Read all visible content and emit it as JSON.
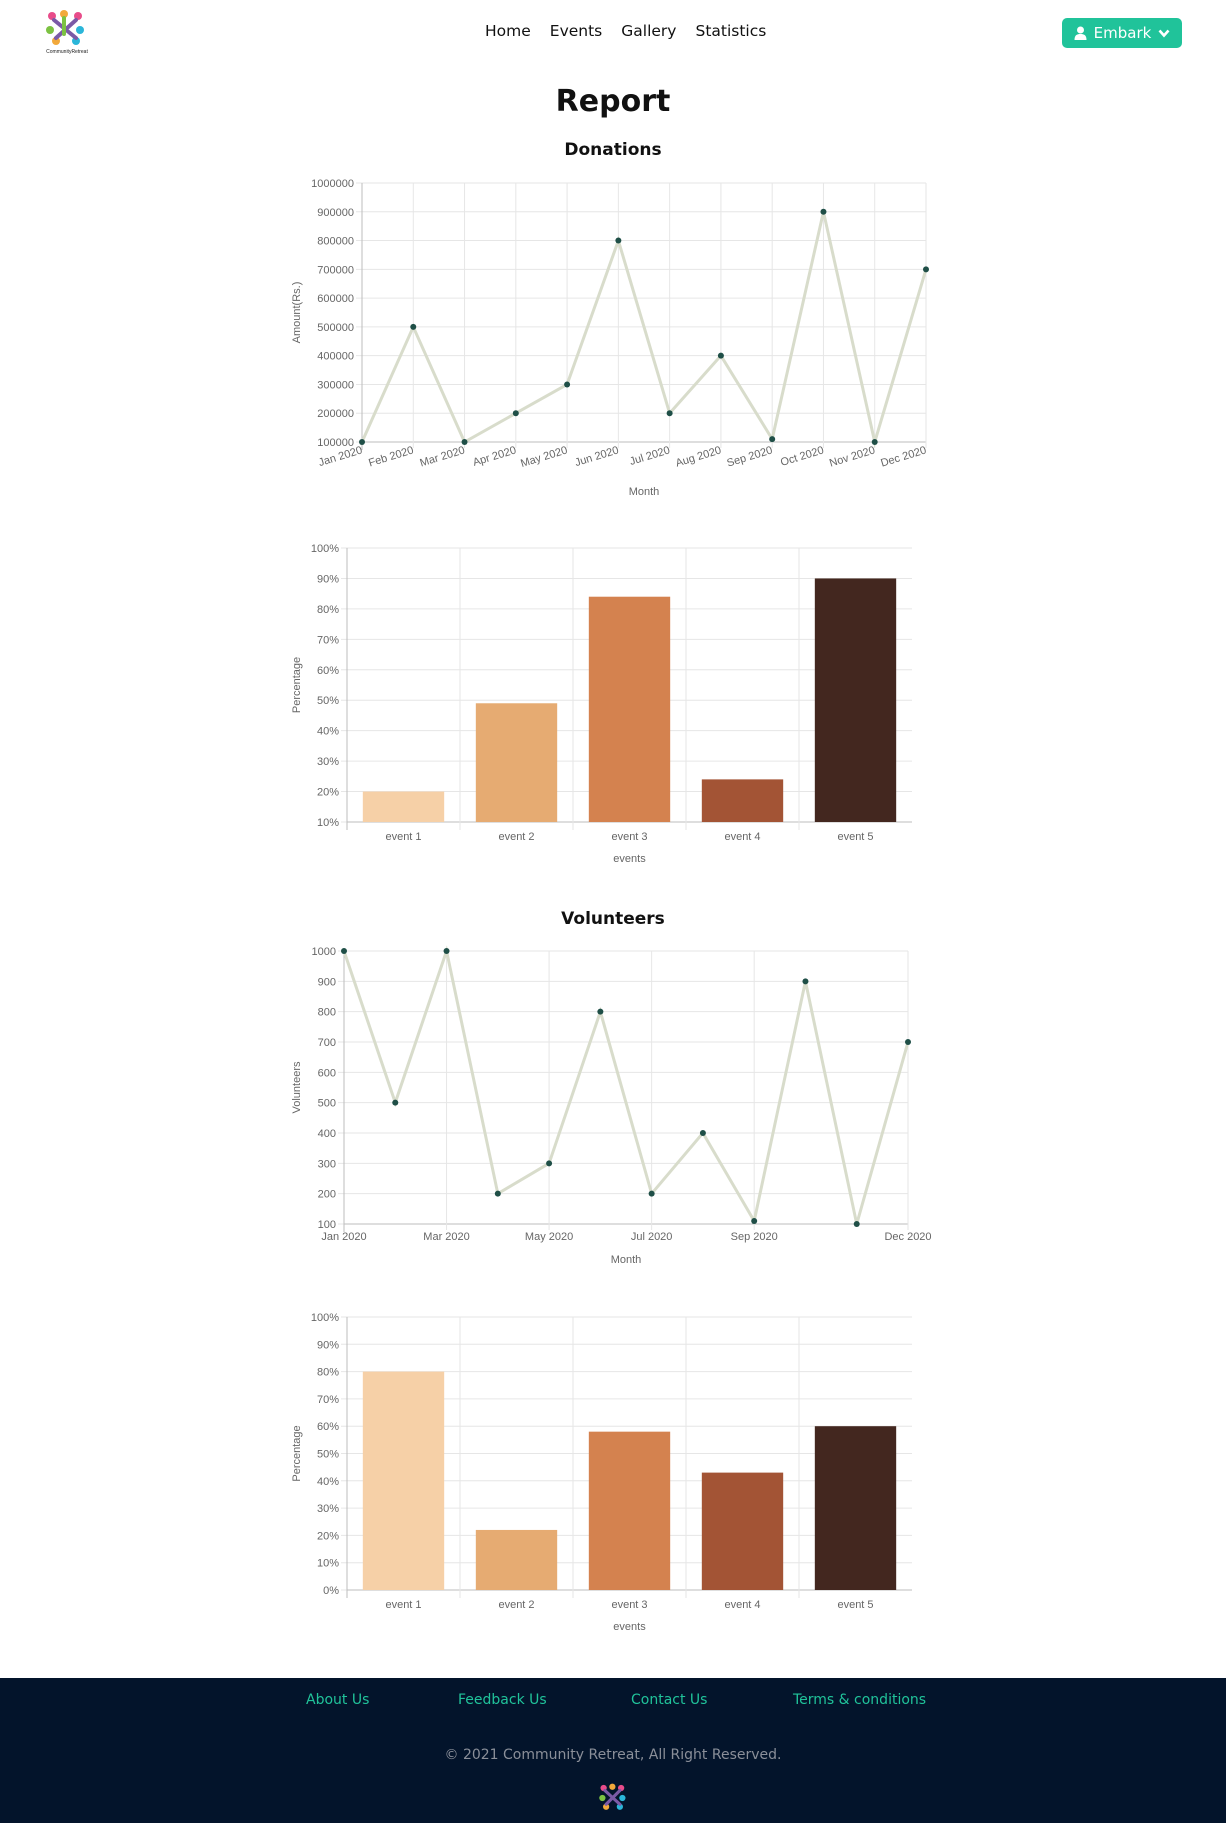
{
  "nav": {
    "logo_text": "CommunityRetreat",
    "links": [
      "Home",
      "Events",
      "Gallery",
      "Statistics"
    ],
    "user_button": "Embark"
  },
  "page_title": "Report",
  "sections": {
    "donations": "Donations",
    "volunteers": "Volunteers"
  },
  "chart_data": [
    {
      "type": "line",
      "title": "Donations",
      "xlabel": "Month",
      "ylabel": "Amount(Rs.)",
      "categories": [
        "Jan 2020",
        "Feb 2020",
        "Mar 2020",
        "Apr 2020",
        "May 2020",
        "Jun 2020",
        "Jul 2020",
        "Aug 2020",
        "Sep 2020",
        "Oct 2020",
        "Nov 2020",
        "Dec 2020"
      ],
      "values": [
        100000,
        500000,
        100000,
        200000,
        300000,
        800000,
        200000,
        400000,
        110000,
        900000,
        100000,
        700000
      ],
      "ylim": [
        100000,
        1000000
      ],
      "yticks": [
        "1000000",
        "900000",
        "800000",
        "700000",
        "600000",
        "500000",
        "400000",
        "300000",
        "200000",
        "100000"
      ],
      "line_color": "#d8dccb",
      "point_color": "#1f4f47",
      "grid": true
    },
    {
      "type": "bar",
      "xlabel": "events",
      "ylabel": "Percentage",
      "categories": [
        "event 1",
        "event 2",
        "event 3",
        "event 4",
        "event 5"
      ],
      "values": [
        20,
        49,
        84,
        24,
        90
      ],
      "ylim": [
        10,
        100
      ],
      "yticks": [
        "100%",
        "90%",
        "80%",
        "70%",
        "60%",
        "50%",
        "40%",
        "30%",
        "20%",
        "10%"
      ],
      "colors": [
        "#f6d0a7",
        "#e6ab72",
        "#d4824f",
        "#a35435",
        "#43271f"
      ],
      "grid": true
    },
    {
      "type": "line",
      "title": "Volunteers",
      "xlabel": "Month",
      "ylabel": "Volunteers",
      "x": [
        "2020-01",
        "2020-02",
        "2020-03",
        "2020-04",
        "2020-05",
        "2020-06",
        "2020-07",
        "2020-08",
        "2020-09",
        "2020-10",
        "2020-11",
        "2020-12"
      ],
      "values": [
        1000,
        500,
        1000,
        200,
        300,
        800,
        200,
        400,
        110,
        900,
        100,
        700
      ],
      "xticks": [
        "Jan 2020",
        "Mar 2020",
        "May 2020",
        "Jul 2020",
        "Sep 2020",
        "Dec 2020"
      ],
      "ylim": [
        100,
        1000
      ],
      "yticks": [
        "1000",
        "900",
        "800",
        "700",
        "600",
        "500",
        "400",
        "300",
        "200",
        "100"
      ],
      "line_color": "#d8dccb",
      "point_color": "#1f4f47",
      "grid": true
    },
    {
      "type": "bar",
      "xlabel": "events",
      "ylabel": "Percentage",
      "categories": [
        "event 1",
        "event 2",
        "event 3",
        "event 4",
        "event 5"
      ],
      "values": [
        80,
        22,
        58,
        43,
        60
      ],
      "ylim": [
        0,
        100
      ],
      "yticks": [
        "100%",
        "90%",
        "80%",
        "70%",
        "60%",
        "50%",
        "40%",
        "30%",
        "20%",
        "10%",
        "0%"
      ],
      "colors": [
        "#f6d0a7",
        "#e6ab72",
        "#d4824f",
        "#a35435",
        "#43271f"
      ],
      "grid": true
    }
  ],
  "footer": {
    "links": [
      "About Us",
      "Feedback Us",
      "Contact Us",
      "Terms & conditions"
    ],
    "copyright": "2021 Community Retreat, All Right Reserved."
  },
  "colors": {
    "accent": "#20c39a",
    "footer_bg": "#03142b"
  },
  "icons": {
    "user_button": [
      "user-icon",
      "chevron-down-icon"
    ],
    "copyright": "copyright-icon"
  }
}
